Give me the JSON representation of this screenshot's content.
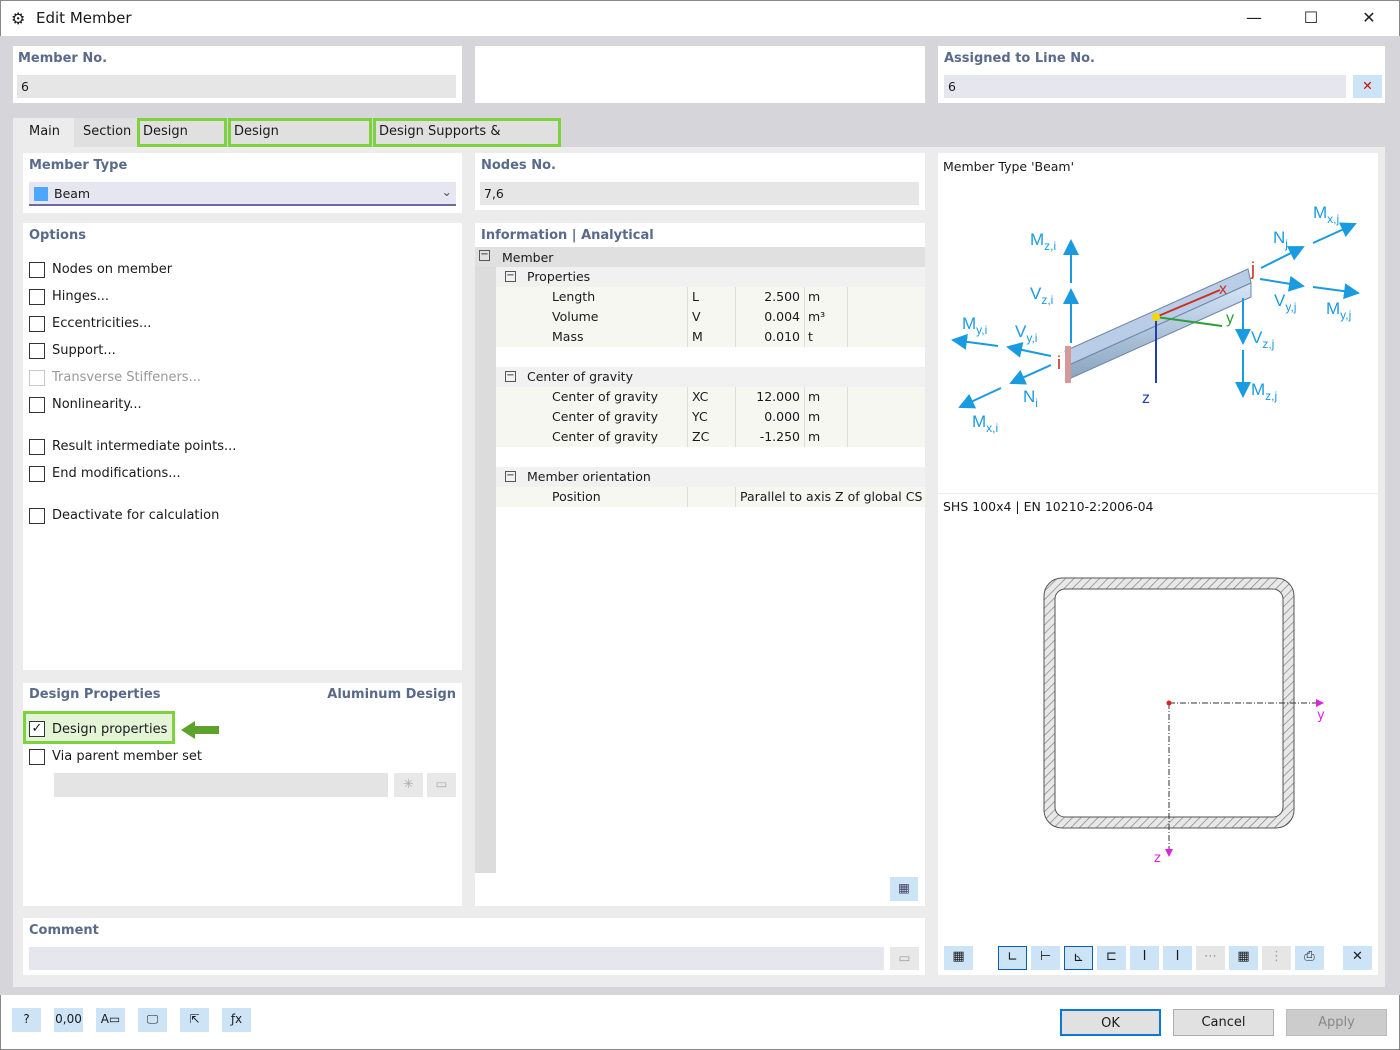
{
  "window": {
    "title": "Edit Member",
    "minimize": "—",
    "maximize": "☐",
    "close": "✕"
  },
  "member_no": {
    "label": "Member No.",
    "value": "6"
  },
  "assigned": {
    "label": "Assigned to Line No.",
    "value": "6"
  },
  "tabs": [
    {
      "label": "Main",
      "active": true
    },
    {
      "label": "Section"
    },
    {
      "label": "Design Types",
      "highlighted": true
    },
    {
      "label": "Design Configurations",
      "highlighted": true
    },
    {
      "label": "Design Supports & Deflection",
      "highlighted": true
    }
  ],
  "member_type": {
    "label": "Member Type",
    "value": "Beam",
    "color": "#4da6ff"
  },
  "options": {
    "label": "Options",
    "items": [
      {
        "label": "Nodes on member",
        "checked": false
      },
      {
        "label": "Hinges...",
        "checked": false
      },
      {
        "label": "Eccentricities...",
        "checked": false
      },
      {
        "label": "Support...",
        "checked": false
      },
      {
        "label": "Transverse Stiffeners...",
        "checked": false,
        "disabled": true
      },
      {
        "label": "Nonlinearity...",
        "checked": false
      },
      {
        "label": "Result intermediate points...",
        "checked": false
      },
      {
        "label": "End modifications...",
        "checked": false
      },
      {
        "label": "Deactivate for calculation",
        "checked": false
      }
    ]
  },
  "design": {
    "label": "Design Properties",
    "addon": "Aluminum Design",
    "design_properties": "Design properties",
    "design_checked": true,
    "via_parent": "Via parent member set",
    "via_checked": false
  },
  "nodes": {
    "label": "Nodes No.",
    "value": "7,6"
  },
  "info": {
    "label": "Information | Analytical",
    "root": "Member",
    "groups": [
      {
        "label": "Properties",
        "rows": [
          {
            "name": "Length",
            "sym": "L",
            "value": "2.500",
            "unit": "m"
          },
          {
            "name": "Volume",
            "sym": "V",
            "value": "0.004",
            "unit": "m³"
          },
          {
            "name": "Mass",
            "sym": "M",
            "value": "0.010",
            "unit": "t"
          }
        ]
      },
      {
        "label": "Center of gravity",
        "rows": [
          {
            "name": "Center of gravity",
            "sym": "XC",
            "value": "12.000",
            "unit": "m"
          },
          {
            "name": "Center of gravity",
            "sym": "YC",
            "value": "0.000",
            "unit": "m"
          },
          {
            "name": "Center of gravity",
            "sym": "ZC",
            "value": "-1.250",
            "unit": "m"
          }
        ]
      },
      {
        "label": "Member orientation",
        "rows": [
          {
            "name": "Position",
            "sym": "",
            "value": "Parallel to axis Z of global CS",
            "unit": ""
          }
        ]
      }
    ]
  },
  "preview": {
    "title": "Member Type 'Beam'",
    "section": "SHS 100x4 | EN 10210-2:2006-04",
    "labels": {
      "Mzi": [
        "M",
        "z,i"
      ],
      "Vzi": [
        "V",
        "z,i"
      ],
      "Myi": [
        "M",
        "y,i"
      ],
      "Vyi": [
        "V",
        "y,i"
      ],
      "Ni": [
        "N",
        "i"
      ],
      "Mxi": [
        "M",
        "x,i"
      ],
      "Mxj": [
        "M",
        "x,j"
      ],
      "Nj": [
        "N",
        "j"
      ],
      "Vyj": [
        "V",
        "y,j"
      ],
      "Myj": [
        "M",
        "y,j"
      ],
      "Vzj": [
        "V",
        "z,j"
      ],
      "Mzj": [
        "M",
        "z,j"
      ],
      "i": "i",
      "j": "j",
      "x": "x",
      "y": "y",
      "z": "z"
    },
    "axis_y": "y",
    "axis_z": "z"
  },
  "comment": {
    "label": "Comment",
    "value": ""
  },
  "buttons": {
    "ok": "OK",
    "cancel": "Cancel",
    "apply": "Apply"
  },
  "footer_icons": [
    "help-icon",
    "units-icon",
    "color-legend-icon",
    "view-icon",
    "pick-icon",
    "formula-icon"
  ],
  "accent": "#0a78d7",
  "highlight": "#7ed13f"
}
